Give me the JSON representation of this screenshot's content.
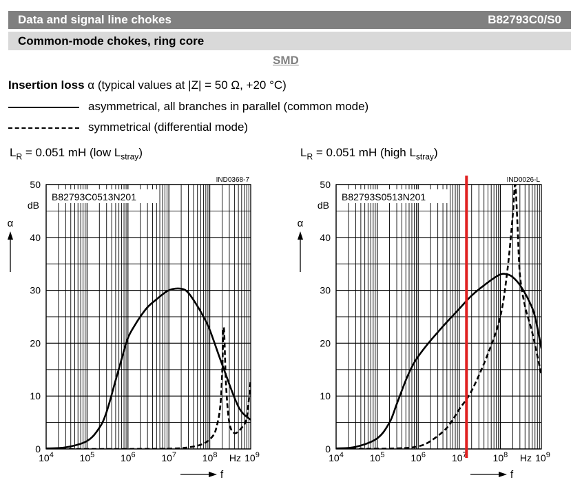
{
  "header": {
    "title": "Data and signal line chokes",
    "part_number": "B82793C0/S0"
  },
  "subheader": {
    "title": "Common-mode chokes, ring core"
  },
  "smd_label": "SMD",
  "insertion_loss": {
    "label_bold": "Insertion loss",
    "label_rest": "α (typical values at |Z| = 50 Ω, +20 °C)",
    "legend": [
      {
        "style": "solid",
        "text": "asymmetrical, all branches in parallel (common mode)"
      },
      {
        "style": "dashed",
        "text": "symmetrical (differential mode)"
      }
    ]
  },
  "colors": {
    "header_bar": "#808080",
    "subheader_bar": "#d9d9d9",
    "marker": "#e02020",
    "curve": "#000000"
  },
  "chart_data": [
    {
      "type": "line",
      "title_main": "L",
      "title_sub1": "R",
      "title_mid": " = 0.051 mH (low L",
      "title_sub2": "stray",
      "title_end": ")",
      "figure_code": "IND0368-7",
      "part_label": "B82793C0513N201",
      "xscale": "log",
      "xlim": [
        10000,
        1000000000
      ],
      "ylim": [
        0,
        50
      ],
      "x_ticks": [
        "10^4",
        "10^5",
        "10^6",
        "10^7",
        "10^8",
        "10^9"
      ],
      "y_ticks": [
        "0",
        "10",
        "20",
        "30",
        "40",
        "50"
      ],
      "x_unit": "Hz",
      "x_symbol": "f",
      "y_unit": "dB",
      "y_symbol": "α",
      "grid": true,
      "series": [
        {
          "style": "solid",
          "x": [
            10000,
            30000,
            100000,
            200000,
            300000,
            500000,
            700000,
            1000000,
            1500000,
            2000000,
            3000000,
            5000000,
            10000000,
            20000000,
            30000000,
            50000000,
            70000000,
            100000000,
            200000000,
            500000000,
            1000000000
          ],
          "y": [
            0.1,
            0.3,
            1.5,
            4,
            7,
            13,
            17,
            21,
            23.5,
            25,
            26.8,
            28.3,
            30,
            30.3,
            29.5,
            27,
            25,
            22.5,
            16,
            8,
            5.5
          ]
        },
        {
          "style": "dashed",
          "x": [
            10000,
            1000000,
            10000000,
            30000000,
            70000000,
            120000000,
            150000000,
            180000000,
            200000000,
            220000000,
            250000000,
            300000000,
            400000000,
            600000000,
            800000000,
            1000000000
          ],
          "y": [
            0,
            0,
            0.05,
            0.3,
            1,
            2.5,
            4.5,
            8,
            14,
            23,
            12,
            5,
            3,
            4,
            6,
            13
          ]
        }
      ]
    },
    {
      "type": "line",
      "title_main": "L",
      "title_sub1": "R",
      "title_mid": " = 0.051 mH (high L",
      "title_sub2": "stray",
      "title_end": ")",
      "figure_code": "IND0026-L",
      "part_label": "B82793S0513N201",
      "xscale": "log",
      "xlim": [
        10000,
        1000000000
      ],
      "ylim": [
        0,
        50
      ],
      "x_ticks": [
        "10^4",
        "10^5",
        "10^6",
        "10^7",
        "10^8",
        "10^9"
      ],
      "y_ticks": [
        "0",
        "10",
        "20",
        "30",
        "40",
        "50"
      ],
      "x_unit": "Hz",
      "x_symbol": "f",
      "y_unit": "dB",
      "y_symbol": "α",
      "grid": true,
      "marker_x": 15000000,
      "series": [
        {
          "style": "solid",
          "x": [
            10000,
            30000,
            100000,
            200000,
            300000,
            500000,
            700000,
            1000000,
            2000000,
            5000000,
            10000000,
            20000000,
            50000000,
            100000000,
            150000000,
            200000000,
            300000000,
            500000000,
            700000000,
            1000000000
          ],
          "y": [
            0.1,
            0.4,
            2,
            5,
            8.5,
            13,
            15.5,
            17.5,
            20.5,
            24,
            26.5,
            29,
            31.5,
            33,
            33,
            32.5,
            31,
            28,
            25,
            19
          ]
        },
        {
          "style": "dashed",
          "x": [
            10000,
            300000,
            1000000,
            2000000,
            5000000,
            10000000,
            20000000,
            50000000,
            100000000,
            150000000,
            200000000,
            230000000,
            260000000,
            300000000,
            400000000,
            600000000,
            1000000000
          ],
          "y": [
            0,
            0.1,
            0.5,
            1.5,
            4,
            7.5,
            11,
            18,
            25,
            34,
            44,
            50,
            43,
            33,
            27,
            22,
            14
          ]
        }
      ]
    }
  ]
}
